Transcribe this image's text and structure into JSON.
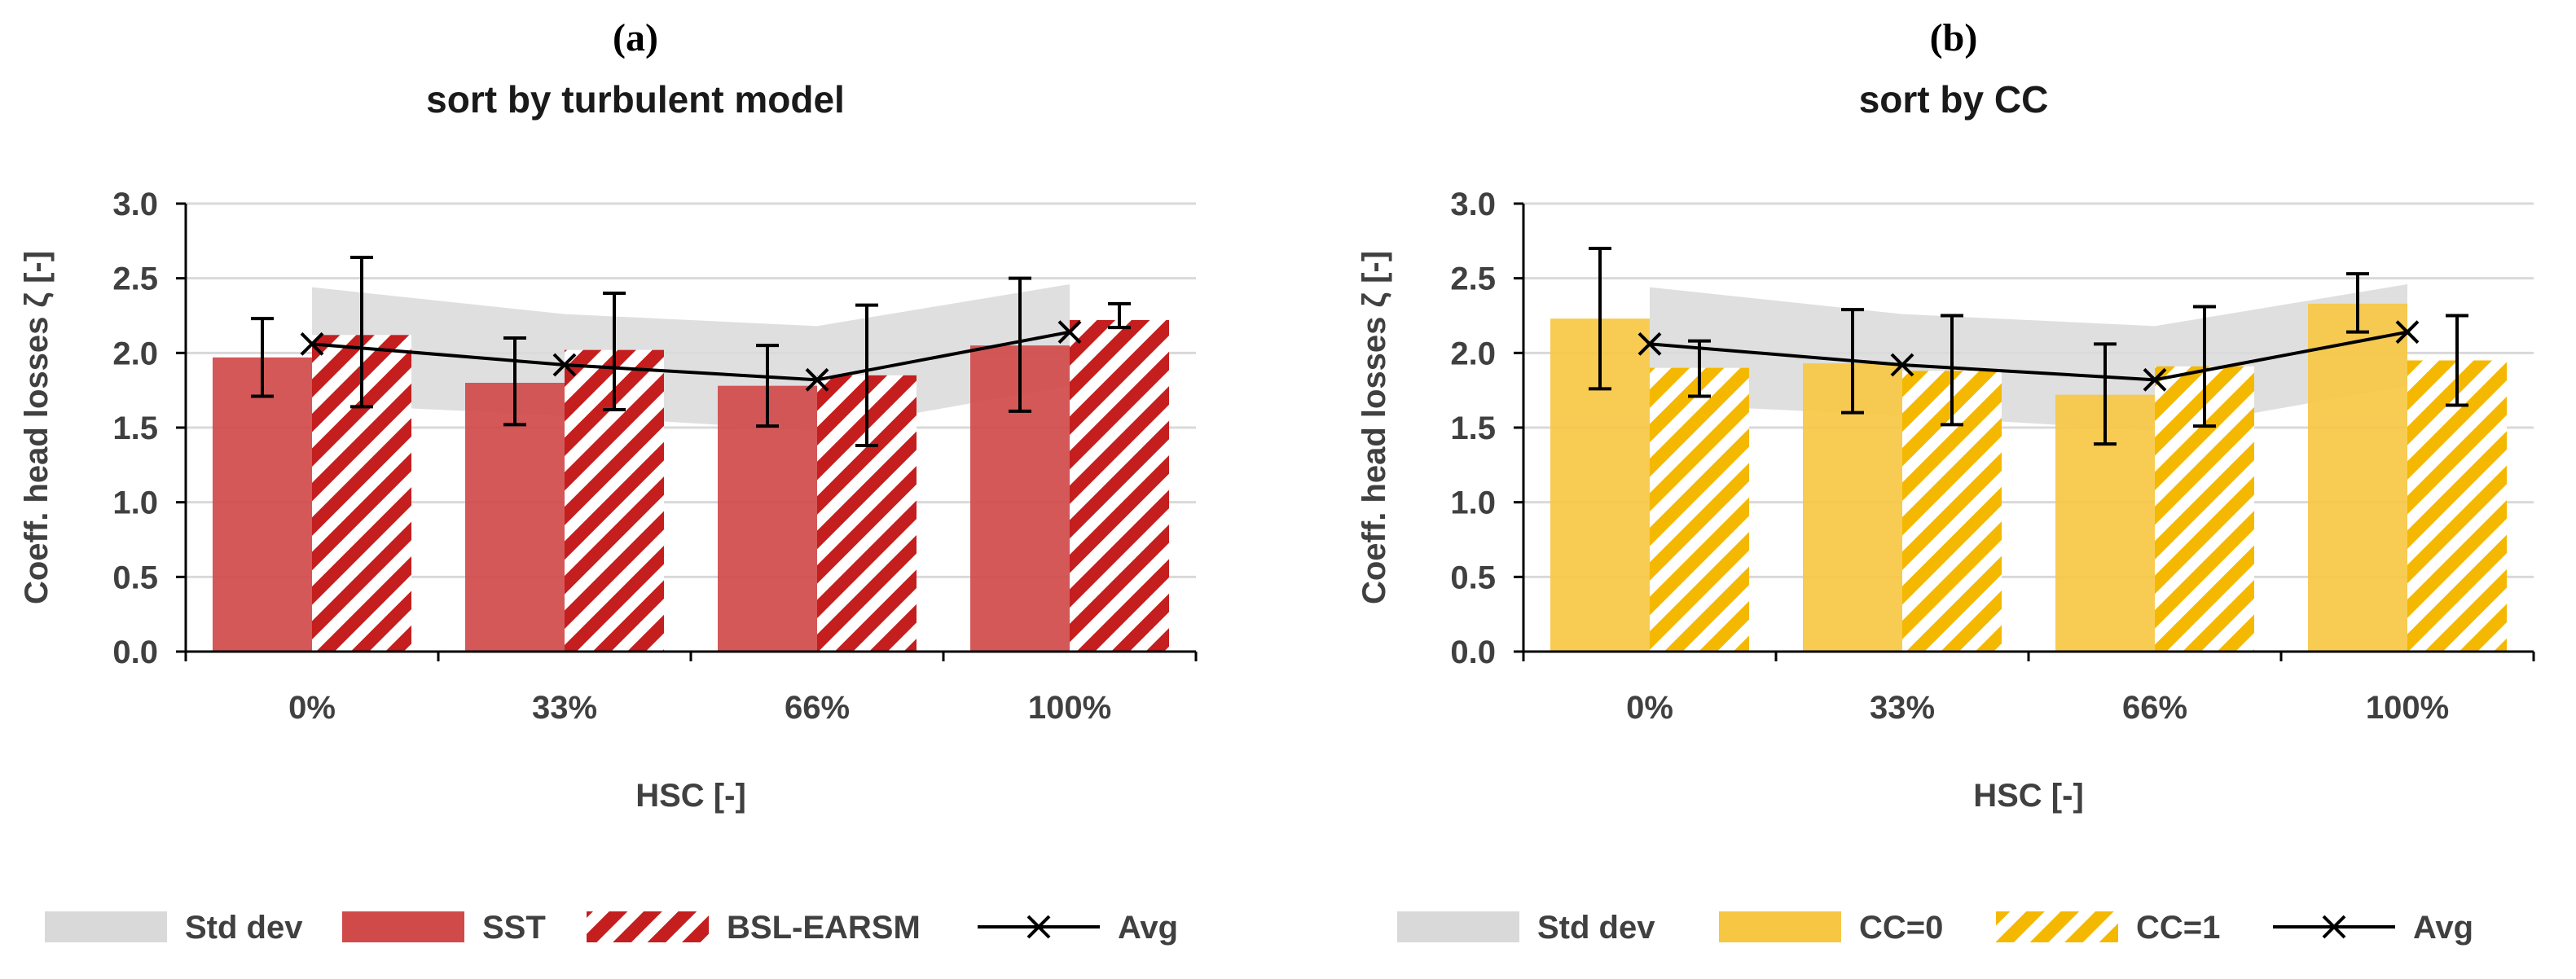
{
  "chart_data": [
    {
      "type": "bar",
      "panel": "(a)",
      "title": "sort by turbulent model",
      "xlabel": "HSC [-]",
      "ylabel": "Coeff. head losses ζ [-]",
      "ylim": [
        0,
        3.0
      ],
      "yticks": [
        "0.0",
        "0.5",
        "1.0",
        "1.5",
        "2.0",
        "2.5",
        "3.0"
      ],
      "grid": true,
      "categories": [
        "0%",
        "33%",
        "66%",
        "100%"
      ],
      "series": [
        {
          "name": "SST",
          "style": "solid",
          "color": "#d04a4a",
          "values": [
            1.97,
            1.8,
            1.78,
            2.05
          ],
          "err_low": [
            1.71,
            1.52,
            1.51,
            1.61
          ],
          "err_high": [
            2.23,
            2.1,
            2.05,
            2.5
          ]
        },
        {
          "name": "BSL-EARSM",
          "style": "hatched",
          "color": "#c41e1e",
          "values": [
            2.12,
            2.02,
            1.85,
            2.22
          ],
          "err_low": [
            1.64,
            1.62,
            1.38,
            2.17
          ],
          "err_high": [
            2.64,
            2.4,
            2.32,
            2.33
          ]
        }
      ],
      "avg": {
        "name": "Avg",
        "values": [
          2.06,
          1.92,
          1.82,
          2.14
        ]
      },
      "stddev": {
        "name": "Std dev",
        "low": [
          1.66,
          1.58,
          1.48,
          1.78
        ],
        "high": [
          2.44,
          2.26,
          2.18,
          2.46
        ]
      },
      "legend": [
        "Std dev",
        "SST",
        "BSL-EARSM",
        "Avg"
      ],
      "legend_position": "bottom"
    },
    {
      "type": "bar",
      "panel": "(b)",
      "title": "sort by CC",
      "xlabel": "HSC [-]",
      "ylabel": "Coeff. head losses ζ [-]",
      "ylim": [
        0,
        3.0
      ],
      "yticks": [
        "0.0",
        "0.5",
        "1.0",
        "1.5",
        "2.0",
        "2.5",
        "3.0"
      ],
      "grid": true,
      "categories": [
        "0%",
        "33%",
        "66%",
        "100%"
      ],
      "series": [
        {
          "name": "CC=0",
          "style": "solid",
          "color": "#f7c744",
          "values": [
            2.23,
            1.93,
            1.72,
            2.33
          ],
          "err_low": [
            1.76,
            1.6,
            1.39,
            2.14
          ],
          "err_high": [
            2.7,
            2.29,
            2.06,
            2.53
          ]
        },
        {
          "name": "CC=1",
          "style": "hatched",
          "color": "#f5b800",
          "values": [
            1.9,
            1.88,
            1.91,
            1.95
          ],
          "err_low": [
            1.71,
            1.52,
            1.51,
            1.65
          ],
          "err_high": [
            2.08,
            2.25,
            2.31,
            2.25
          ]
        }
      ],
      "avg": {
        "name": "Avg",
        "values": [
          2.06,
          1.92,
          1.82,
          2.14
        ]
      },
      "stddev": {
        "name": "Std dev",
        "low": [
          1.66,
          1.58,
          1.48,
          1.78
        ],
        "high": [
          2.44,
          2.26,
          2.18,
          2.46
        ]
      },
      "legend": [
        "Std dev",
        "CC=0",
        "CC=1",
        "Avg"
      ],
      "legend_position": "bottom"
    }
  ]
}
